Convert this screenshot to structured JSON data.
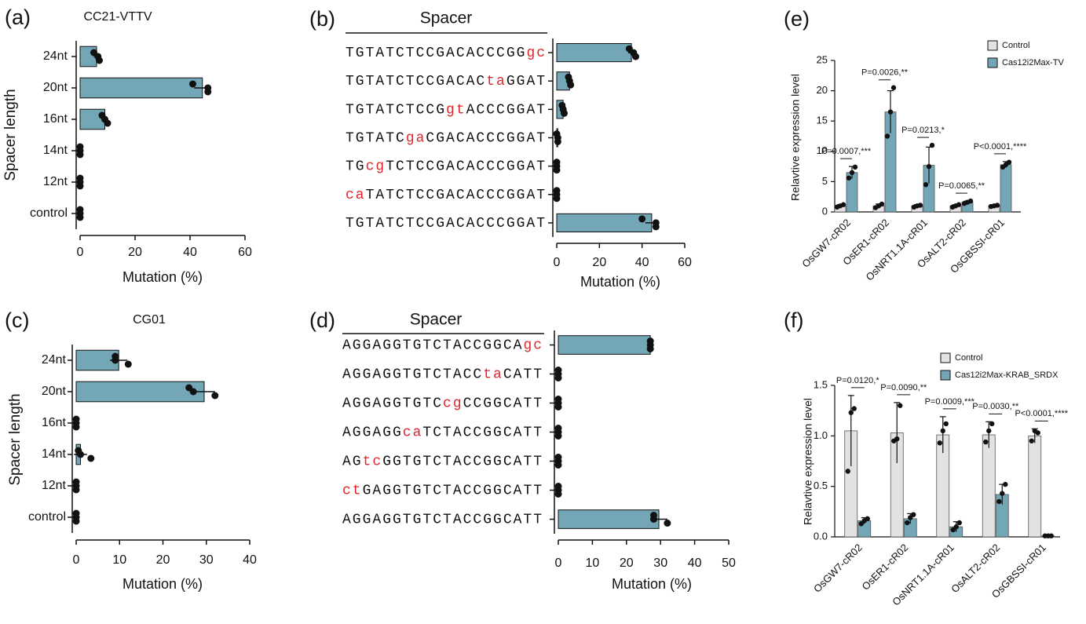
{
  "chart_data": [
    {
      "panel": "(a)",
      "type": "hbar",
      "title": "CC21-VTTV",
      "x_label": "Mutation (%)",
      "y_label": "Spacer length",
      "categories": [
        "24nt",
        "20nt",
        "16nt",
        "14nt",
        "12nt",
        "control"
      ],
      "values": [
        6,
        44.5,
        9,
        0,
        0,
        0
      ],
      "errors": [
        1,
        3,
        1,
        0,
        0,
        0
      ],
      "replicates": [
        [
          5,
          6.5,
          7
        ],
        [
          41,
          46.5,
          46.5
        ],
        [
          8,
          9,
          10
        ],
        [
          0,
          0,
          0
        ],
        [
          0,
          0,
          0
        ],
        [
          0,
          0,
          0
        ]
      ],
      "color": "#73a7b7",
      "xlim": [
        0,
        60
      ],
      "xticks": [
        0,
        20,
        40,
        60
      ]
    },
    {
      "panel": "(b)",
      "type": "hbar",
      "title": "Spacer",
      "x_label": "Mutation (%)",
      "categories": [
        "TGTATCTCCGACACCCGGgc",
        "TGTATCTCCGACACtaGGAT",
        "TGTATCTCCGgtACCCGGAT",
        "TGTATCgaCGACACCCGGAT",
        "TGcgTCTCCGACACCCGGAT",
        "caTATCTCCGACACCCGGAT",
        "TGTATCTCCGACACCCGGAT"
      ],
      "values": [
        35,
        6,
        3,
        0.5,
        0,
        0,
        44.5
      ],
      "errors": [
        1.5,
        0.5,
        0.5,
        0.3,
        0,
        0,
        3
      ],
      "replicates": [
        [
          34,
          36,
          37
        ],
        [
          5.5,
          6,
          6.5
        ],
        [
          2.5,
          3,
          3.5
        ],
        [
          0,
          0.5,
          0.5
        ],
        [
          0,
          0,
          0
        ],
        [
          0,
          0,
          0
        ],
        [
          40,
          46.5,
          46.5
        ]
      ],
      "color": "#73a7b7",
      "highlight_color": "#e0242b",
      "xlim": [
        0,
        60
      ],
      "xticks": [
        0,
        20,
        40,
        60
      ]
    },
    {
      "panel": "(c)",
      "type": "hbar",
      "title": "CG01",
      "x_label": "Mutation (%)",
      "y_label": "Spacer length",
      "categories": [
        "24nt",
        "20nt",
        "16nt",
        "14nt",
        "12nt",
        "control"
      ],
      "values": [
        9.8,
        29.5,
        0,
        1,
        0,
        0
      ],
      "errors": [
        2,
        2.5,
        0,
        1.5,
        0,
        0
      ],
      "replicates": [
        [
          9,
          9,
          12
        ],
        [
          26,
          27,
          32
        ],
        [
          0,
          0,
          0
        ],
        [
          0.5,
          1,
          3.4
        ],
        [
          0,
          0,
          0
        ],
        [
          0,
          0,
          0
        ]
      ],
      "color": "#73a7b7",
      "xlim": [
        0,
        40
      ],
      "xticks": [
        0,
        10,
        20,
        30,
        40
      ]
    },
    {
      "panel": "(d)",
      "type": "hbar",
      "title": "Spacer",
      "x_label": "Mutation (%)",
      "categories": [
        "AGGAGGTGTCTACCGGCAgc",
        "AGGAGGTGTCTACCtaCATT",
        "AGGAGGTGTCcgCCGGCATT",
        "AGGAGGcaTCTACCGGCATT",
        "AGtcGGTGTCTACCGGCATT",
        "ctGAGGTGTCTACCGGCATT",
        "AGGAGGTGTCTACCGGCATT"
      ],
      "values": [
        27,
        0,
        0,
        0,
        0,
        0,
        29.5
      ],
      "errors": [
        0,
        0,
        0,
        0,
        0,
        0,
        2.5
      ],
      "replicates": [
        [
          27,
          27,
          27
        ],
        [
          0,
          0,
          0
        ],
        [
          0,
          0,
          0
        ],
        [
          0,
          0,
          0
        ],
        [
          0,
          0,
          0
        ],
        [
          0,
          0,
          0
        ],
        [
          28,
          28,
          32
        ]
      ],
      "color": "#73a7b7",
      "highlight_color": "#e0242b",
      "xlim": [
        0,
        50
      ],
      "xticks": [
        0,
        10,
        20,
        30,
        40,
        50
      ]
    },
    {
      "panel": "(e)",
      "type": "bar",
      "y_label": "Relavtive expression level",
      "categories": [
        "OsGW7-cR02",
        "OsER1-cR02",
        "OsNRT1.1A-cR01",
        "OsALT2-cR02",
        "OsGBSSI-cR01"
      ],
      "series": [
        {
          "name": "Control",
          "color": "#e2e2e2",
          "values": [
            1,
            1,
            1,
            1,
            1
          ],
          "errors": [
            0.2,
            0.3,
            0.2,
            0.2,
            0.1
          ],
          "replicates": [
            [
              0.8,
              1,
              1.2
            ],
            [
              0.7,
              1,
              1.3
            ],
            [
              0.8,
              1,
              1.1
            ],
            [
              0.8,
              1,
              1.2
            ],
            [
              0.9,
              1,
              1.1
            ]
          ]
        },
        {
          "name": "Cas12i2Max-TV",
          "color": "#73a7b7",
          "values": [
            6.5,
            16.5,
            7.7,
            1.6,
            7.8
          ],
          "errors": [
            1,
            3.5,
            3,
            0.2,
            0.5
          ],
          "replicates": [
            [
              5.6,
              6.5,
              7.4
            ],
            [
              12.5,
              16.5,
              20.5
            ],
            [
              4.5,
              7.5,
              11
            ],
            [
              1.4,
              1.6,
              1.8
            ],
            [
              7.4,
              7.8,
              8.2
            ]
          ]
        }
      ],
      "annotations": [
        "P=0.0007,***",
        "P=0.0026,**",
        "P=0.0213,*",
        "P=0.0065,**",
        "P<0.0001,****"
      ],
      "ylim": [
        0,
        25
      ],
      "yticks": [
        0,
        5,
        10,
        15,
        20,
        25
      ]
    },
    {
      "panel": "(f)",
      "type": "bar",
      "y_label": "Relavtive expression level",
      "categories": [
        "OsGW7-cR02",
        "OsER1-cR02",
        "OsNRT1.1A-cR01",
        "OsALT2-cR02",
        "OsGBSSI-cR01"
      ],
      "series": [
        {
          "name": "Control",
          "color": "#e2e2e2",
          "values": [
            1.05,
            1.03,
            1.01,
            1.01,
            1.0
          ],
          "errors": [
            0.35,
            0.3,
            0.18,
            0.13,
            0.07
          ],
          "replicates": [
            [
              0.65,
              1.23,
              1.27
            ],
            [
              0.95,
              0.97,
              1.3
            ],
            [
              0.93,
              1.05,
              1.12
            ],
            [
              0.94,
              1.05,
              1.12
            ],
            [
              0.95,
              1.05,
              1.03
            ]
          ]
        },
        {
          "name": "Cas12i2Max-KRAB_SRDX",
          "color": "#73a7b7",
          "values": [
            0.16,
            0.18,
            0.1,
            0.42,
            0.01
          ],
          "errors": [
            0.03,
            0.05,
            0.05,
            0.1,
            0.005
          ],
          "replicates": [
            [
              0.13,
              0.16,
              0.18
            ],
            [
              0.14,
              0.19,
              0.22
            ],
            [
              0.07,
              0.1,
              0.14
            ],
            [
              0.35,
              0.43,
              0.52
            ],
            [
              0.01,
              0.01,
              0.01
            ]
          ]
        }
      ],
      "annotations": [
        "P=0.0120,*",
        "P=0.0090,**",
        "P=0.0009,***",
        "P=0.0030,**",
        "P<0.0001,****"
      ],
      "ylim": [
        0,
        1.5
      ],
      "yticks": [
        {
          "value": 0,
          "label": "0.0"
        },
        0.5,
        {
          "value": 1,
          "label": "1.0"
        },
        1.5
      ]
    }
  ]
}
